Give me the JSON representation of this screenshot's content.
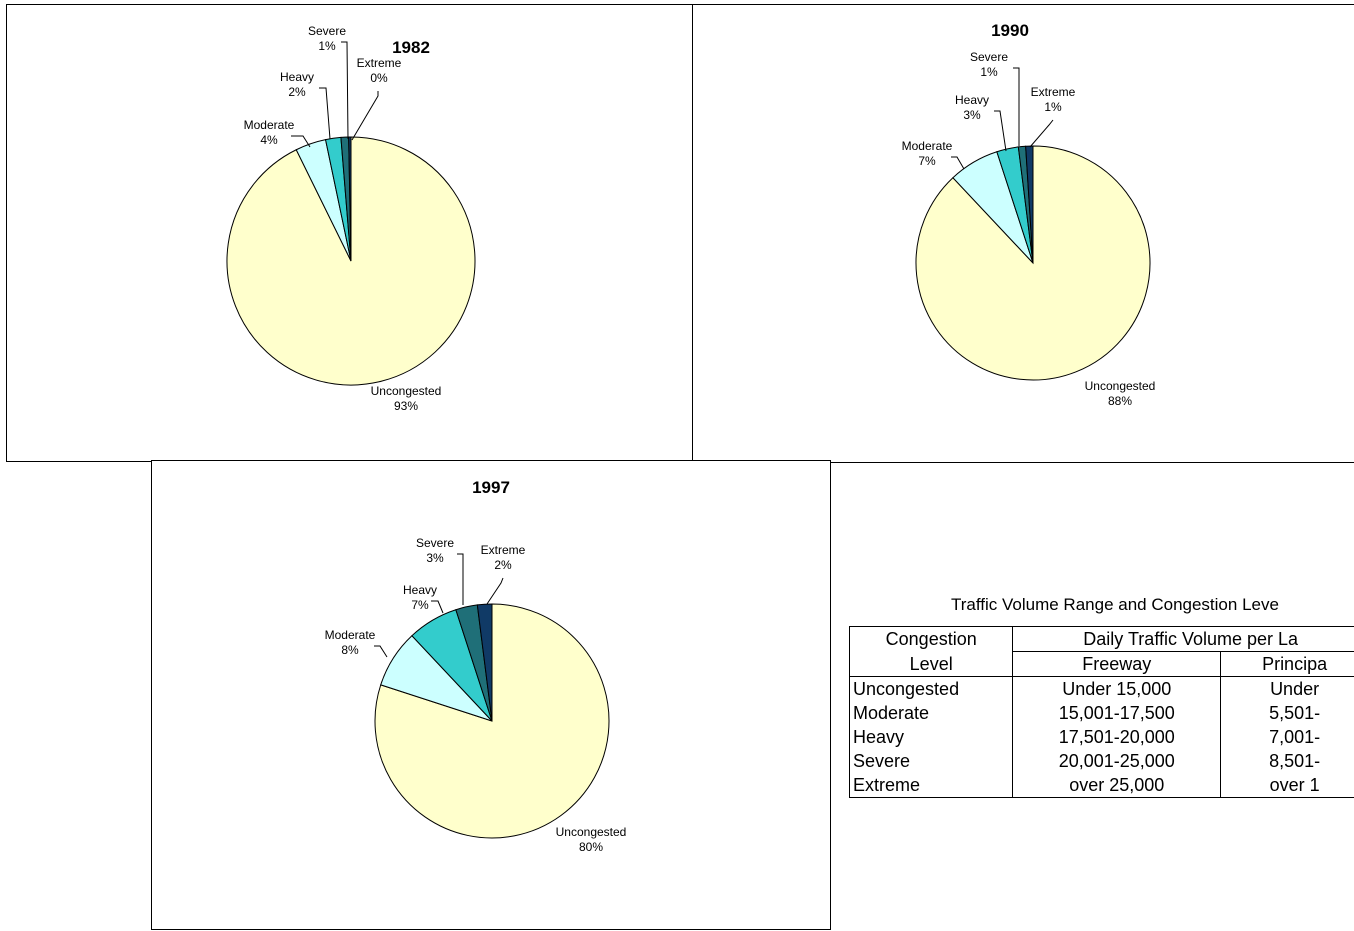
{
  "colors": {
    "Uncongested": "#ffffcc",
    "Moderate": "#ccffff",
    "Heavy": "#33cccc",
    "Severe": "#1f6f78",
    "Extreme": "#103a66"
  },
  "chart_data": [
    {
      "type": "pie",
      "title": "1982",
      "slices": [
        {
          "label": "Uncongested",
          "value": 93,
          "pct": "93%"
        },
        {
          "label": "Moderate",
          "value": 4,
          "pct": "4%"
        },
        {
          "label": "Heavy",
          "value": 2,
          "pct": "2%"
        },
        {
          "label": "Severe",
          "value": 1,
          "pct": "1%"
        },
        {
          "label": "Extreme",
          "value": 0.3,
          "pct": "0%"
        }
      ]
    },
    {
      "type": "pie",
      "title": "1990",
      "slices": [
        {
          "label": "Uncongested",
          "value": 88,
          "pct": "88%"
        },
        {
          "label": "Moderate",
          "value": 7,
          "pct": "7%"
        },
        {
          "label": "Heavy",
          "value": 3,
          "pct": "3%"
        },
        {
          "label": "Severe",
          "value": 1,
          "pct": "1%"
        },
        {
          "label": "Extreme",
          "value": 1,
          "pct": "1%"
        }
      ]
    },
    {
      "type": "pie",
      "title": "1997",
      "slices": [
        {
          "label": "Uncongested",
          "value": 80,
          "pct": "80%"
        },
        {
          "label": "Moderate",
          "value": 8,
          "pct": "8%"
        },
        {
          "label": "Heavy",
          "value": 7,
          "pct": "7%"
        },
        {
          "label": "Severe",
          "value": 3,
          "pct": "3%"
        },
        {
          "label": "Extreme",
          "value": 2,
          "pct": "2%"
        }
      ]
    }
  ],
  "table": {
    "caption": "Traffic Volume Range and Congestion Leve",
    "header_level_top": "Congestion",
    "header_level_bottom": "Level",
    "header_group": "Daily Traffic Volume per La",
    "header_col2": "Freeway",
    "header_col3": "Principa",
    "rows": [
      [
        "Uncongested",
        "Under 15,000",
        "Under"
      ],
      [
        "Moderate",
        "15,001-17,500",
        "5,501-"
      ],
      [
        "Heavy",
        "17,501-20,000",
        "7,001-"
      ],
      [
        "Severe",
        "20,001-25,000",
        "8,501-"
      ],
      [
        "Extreme",
        "over 25,000",
        "over 1"
      ]
    ]
  }
}
